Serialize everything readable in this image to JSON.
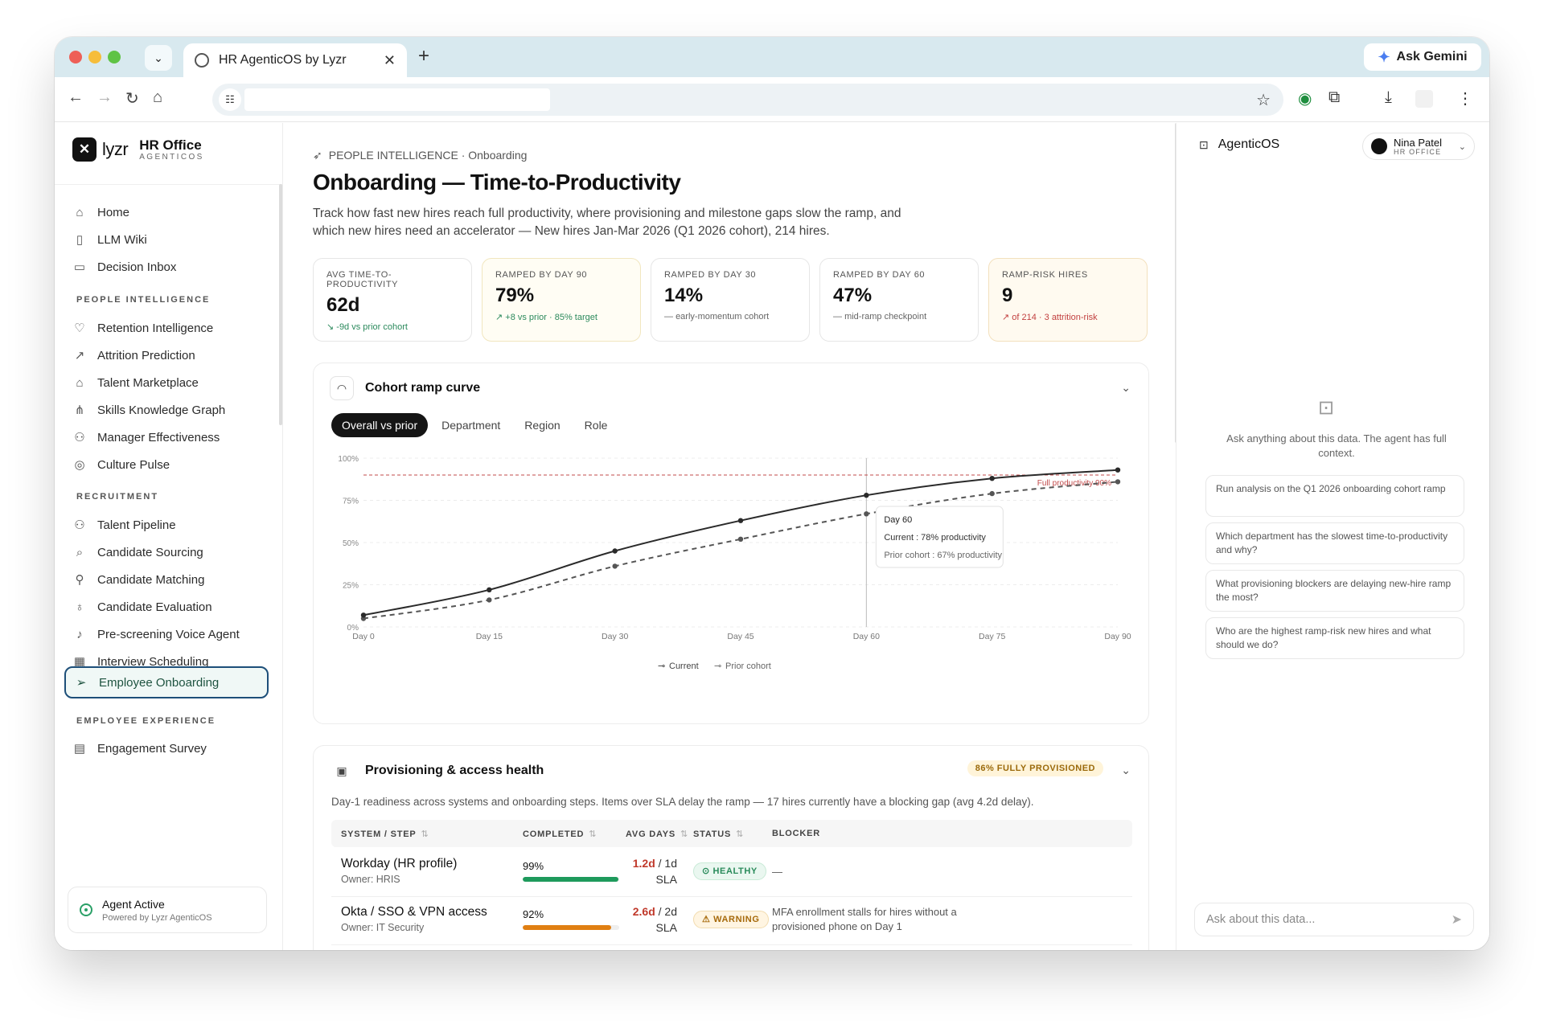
{
  "browser": {
    "tab_title": "HR AgenticOS by Lyzr",
    "ask_gemini": "Ask Gemini"
  },
  "brand": {
    "logo_mark": "✕",
    "logo_text": "lyzr",
    "product": "HR Office",
    "product_sub": "AGENTICOS"
  },
  "sidebar": {
    "top_items": [
      {
        "label": "Home",
        "icon": "home-icon"
      },
      {
        "label": "LLM Wiki",
        "icon": "book-icon"
      },
      {
        "label": "Decision Inbox",
        "icon": "inbox-icon"
      }
    ],
    "sections": [
      {
        "title": "PEOPLE INTELLIGENCE",
        "items": [
          {
            "label": "Retention Intelligence",
            "icon": "heart-pulse-icon"
          },
          {
            "label": "Attrition Prediction",
            "icon": "trend-icon"
          },
          {
            "label": "Talent Marketplace",
            "icon": "store-icon"
          },
          {
            "label": "Skills Knowledge Graph",
            "icon": "network-icon"
          },
          {
            "label": "Manager Effectiveness",
            "icon": "users-icon"
          },
          {
            "label": "Culture Pulse",
            "icon": "target-icon"
          }
        ]
      },
      {
        "title": "RECRUITMENT",
        "items": [
          {
            "label": "Talent Pipeline",
            "icon": "users-icon"
          },
          {
            "label": "Candidate Sourcing",
            "icon": "search-icon"
          },
          {
            "label": "Candidate Matching",
            "icon": "user-check-icon"
          },
          {
            "label": "Candidate Evaluation",
            "icon": "award-icon"
          },
          {
            "label": "Pre-screening Voice Agent",
            "icon": "mic-icon"
          },
          {
            "label": "Interview Scheduling",
            "icon": "calendar-icon"
          },
          {
            "label": "Employee Onboarding",
            "icon": "send-icon",
            "active": true
          }
        ]
      },
      {
        "title": "EMPLOYEE EXPERIENCE",
        "items": [
          {
            "label": "Engagement Survey",
            "icon": "clipboard-icon"
          }
        ]
      }
    ],
    "agent": {
      "status": "Agent Active",
      "powered": "Powered by Lyzr AgenticOS"
    }
  },
  "page": {
    "breadcrumb_section": "PEOPLE INTELLIGENCE",
    "breadcrumb_page": "· Onboarding",
    "title": "Onboarding — Time-to-Productivity",
    "description": "Track how fast new hires reach full productivity, where provisioning and milestone gaps slow the ramp, and which new hires need an accelerator — New hires Jan-Mar 2026 (Q1 2026 cohort), 214 hires."
  },
  "kpis": [
    {
      "label": "AVG TIME-TO-PRODUCTIVITY",
      "value": "62d",
      "sub": "-9d vs prior cohort",
      "trend": "down",
      "tone": "green",
      "style": "plain"
    },
    {
      "label": "RAMPED BY DAY 90",
      "value": "79%",
      "sub": "+8 vs prior · 85% target",
      "trend": "up",
      "tone": "green",
      "style": "warm"
    },
    {
      "label": "RAMPED BY DAY 30",
      "value": "14%",
      "sub": "early-momentum cohort",
      "trend": "flat",
      "tone": "neutral",
      "style": "plain"
    },
    {
      "label": "RAMPED BY DAY 60",
      "value": "47%",
      "sub": "mid-ramp checkpoint",
      "trend": "flat",
      "tone": "neutral",
      "style": "plain"
    },
    {
      "label": "RAMP-RISK HIRES",
      "value": "9",
      "sub": "of 214 · 3 attrition-risk",
      "trend": "up",
      "tone": "red",
      "style": "red"
    }
  ],
  "ramp_card": {
    "title": "Cohort ramp curve",
    "tabs": [
      "Overall vs prior",
      "Department",
      "Region",
      "Role"
    ],
    "active_tab": 0
  },
  "chart_data": {
    "type": "line",
    "x": [
      "Day 0",
      "Day 15",
      "Day 30",
      "Day 45",
      "Day 60",
      "Day 75",
      "Day 90"
    ],
    "x_values": [
      0,
      15,
      30,
      45,
      60,
      75,
      90
    ],
    "series": [
      {
        "name": "Current",
        "values": [
          7,
          22,
          45,
          63,
          78,
          88,
          93
        ],
        "color": "#2a2a2a",
        "dash": false
      },
      {
        "name": "Prior cohort",
        "values": [
          5,
          16,
          36,
          52,
          67,
          79,
          86
        ],
        "color": "#555555",
        "dash": true
      }
    ],
    "yticks": [
      "0%",
      "25%",
      "50%",
      "75%",
      "100%"
    ],
    "ylim": [
      0,
      100
    ],
    "reference_line": {
      "value": 90,
      "label": "Full productivity 90%",
      "color": "#c24b4b"
    },
    "hover_x": 60,
    "tooltip": {
      "title": "Day 60",
      "current": "Current : 78% productivity",
      "prior": "Prior cohort : 67% productivity"
    },
    "legend": [
      "Current",
      "Prior cohort"
    ]
  },
  "provisioning": {
    "title": "Provisioning & access health",
    "badge": "86% FULLY PROVISIONED",
    "description": "Day-1 readiness across systems and onboarding steps. Items over SLA delay the ramp — 17 hires currently have a blocking gap (avg 4.2d delay).",
    "columns": [
      "SYSTEM / STEP",
      "COMPLETED",
      "AVG DAYS",
      "STATUS",
      "BLOCKER"
    ],
    "rows": [
      {
        "system": "Workday (HR profile)",
        "owner": "Owner: HRIS",
        "completed": "99%",
        "completed_fraction": 0.99,
        "bar_color": "#1e9a5c",
        "avg": "1.2d",
        "sla": "/ 1d",
        "sla2": "SLA",
        "status": "HEALTHY",
        "status_icon": "check-circle-icon",
        "blocker": "—"
      },
      {
        "system": "Okta / SSO & VPN access",
        "owner": "Owner: IT Security",
        "completed": "92%",
        "completed_fraction": 0.92,
        "bar_color": "#e07f12",
        "avg": "2.6d",
        "sla": "/ 2d",
        "sla2": "SLA",
        "status": "WARNING",
        "status_icon": "warning-icon",
        "blocker": "MFA enrollment stalls for hires without a provisioned phone on Day 1"
      }
    ]
  },
  "assistant": {
    "title": "AgenticOS",
    "user_name": "Nina Patel",
    "user_role": "HR OFFICE",
    "hint": "Ask anything about this data. The agent has full context.",
    "suggestions": [
      "Run analysis on the Q1 2026 onboarding cohort ramp",
      "Which department has the slowest time-to-productivity and why?",
      "What provisioning blockers are delaying new-hire ramp the most?",
      "Who are the highest ramp-risk new hires and what should we do?"
    ],
    "input_placeholder": "Ask about this data..."
  }
}
